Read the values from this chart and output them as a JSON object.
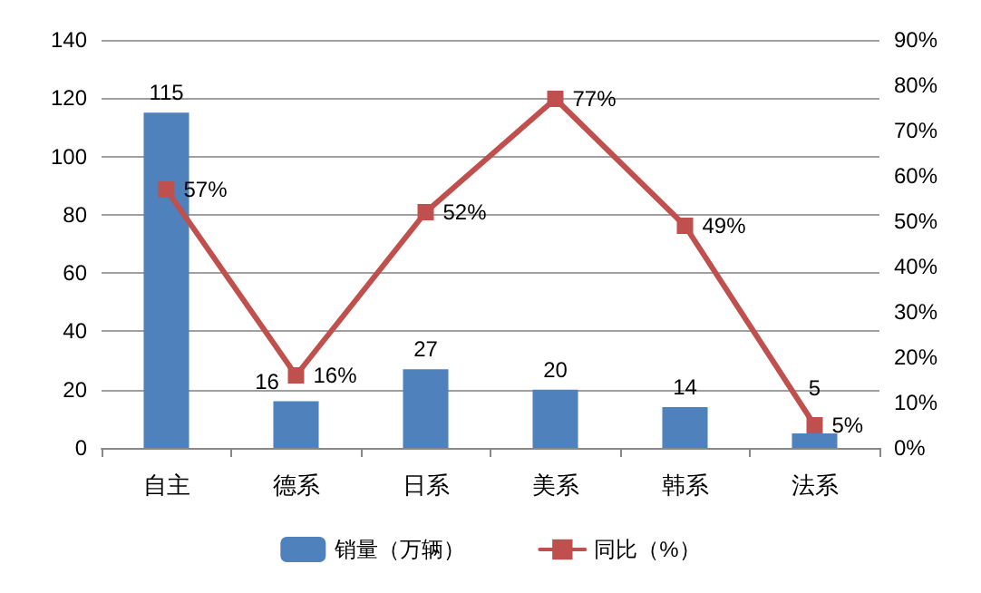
{
  "chart_data": {
    "type": "bar",
    "categories": [
      "自主",
      "德系",
      "日系",
      "美系",
      "韩系",
      "法系"
    ],
    "series": [
      {
        "name": "销量（万辆）",
        "color": "#4f81bd",
        "values": [
          115,
          16,
          27,
          20,
          14,
          5
        ],
        "value_labels": [
          "115",
          "16",
          "27",
          "20",
          "14",
          "5"
        ]
      },
      {
        "name": "同比（%）",
        "type": "line",
        "axis": "y2",
        "color": "#c0504d",
        "values": [
          57,
          16,
          52,
          77,
          49,
          5
        ],
        "value_labels": [
          "57%",
          "16%",
          "52%",
          "77%",
          "49%",
          "5%"
        ]
      }
    ],
    "ylim": [
      0,
      140
    ],
    "yticks": [
      0,
      20,
      40,
      60,
      80,
      100,
      120,
      140
    ],
    "y2lim": [
      0,
      90
    ],
    "y2ticks": [
      {
        "value": 0,
        "label": "0%"
      },
      {
        "value": 10,
        "label": "10%"
      },
      {
        "value": 20,
        "label": "20%"
      },
      {
        "value": 30,
        "label": "30%"
      },
      {
        "value": 40,
        "label": "40%"
      },
      {
        "value": 50,
        "label": "50%"
      },
      {
        "value": 60,
        "label": "60%"
      },
      {
        "value": 70,
        "label": "70%"
      },
      {
        "value": 80,
        "label": "80%"
      },
      {
        "value": 90,
        "label": "90%"
      }
    ],
    "grid": "y",
    "legend": "bottom",
    "marker": "square",
    "line_style": "solid"
  }
}
